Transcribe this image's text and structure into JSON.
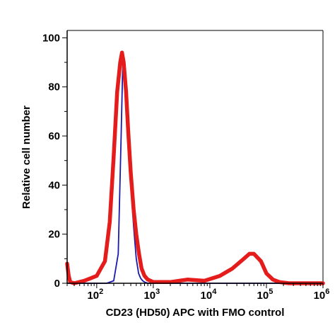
{
  "chart_data": {
    "type": "line",
    "title": "",
    "xlabel": "CD23 (HD50) APC with FMO control",
    "ylabel": "Relative cell number",
    "x_scale": "log",
    "xlim": [
      30,
      1000000
    ],
    "ylim": [
      0,
      103
    ],
    "x_ticks": [
      {
        "value": 100,
        "base": "10",
        "exp": "2"
      },
      {
        "value": 1000,
        "base": "10",
        "exp": "3"
      },
      {
        "value": 10000,
        "base": "10",
        "exp": "4"
      },
      {
        "value": 100000,
        "base": "10",
        "exp": "5"
      },
      {
        "value": 1000000,
        "base": "10",
        "exp": "6"
      }
    ],
    "y_ticks": [
      0,
      20,
      40,
      60,
      80,
      100
    ],
    "grid": false,
    "legend": "none",
    "series": [
      {
        "color": "#1a1aa8",
        "x": [
          30,
          60,
          100,
          150,
          200,
          240,
          270,
          290,
          320,
          360,
          400,
          450,
          500,
          550,
          600,
          650,
          700,
          800,
          1000,
          3000,
          30000,
          1000000
        ],
        "y": [
          0,
          0,
          0,
          0,
          1,
          12,
          60,
          92,
          85,
          62,
          40,
          23,
          10,
          4,
          2,
          1,
          0.5,
          0,
          0,
          0,
          0,
          0
        ]
      },
      {
        "color": "#e51c1c",
        "x": [
          30,
          32,
          34,
          40,
          60,
          100,
          140,
          170,
          200,
          230,
          260,
          280,
          300,
          330,
          360,
          400,
          450,
          500,
          560,
          620,
          700,
          800,
          1000,
          2000,
          4000,
          8000,
          15000,
          25000,
          40000,
          50000,
          60000,
          80000,
          100000,
          130000,
          170000,
          250000,
          500000,
          1000000
        ],
        "y": [
          8,
          3,
          0.5,
          0,
          1,
          3,
          9,
          25,
          52,
          78,
          90,
          94,
          90,
          78,
          62,
          45,
          30,
          20,
          12,
          6,
          3,
          1.5,
          0.5,
          0.5,
          1.5,
          1,
          3,
          6,
          10,
          12,
          12,
          9,
          4,
          1.5,
          0.5,
          0,
          0,
          0
        ]
      }
    ]
  }
}
